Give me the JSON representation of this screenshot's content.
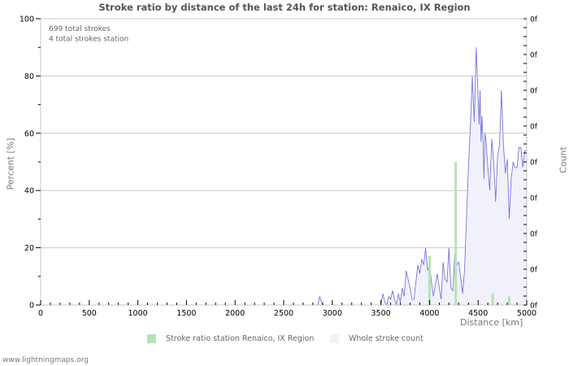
{
  "chart_data": {
    "type": "line",
    "title": "Stroke ratio by distance of the last 24h for station: Renaico, IX Region",
    "xlabel": "Distance   [km]",
    "ylabel": "Percent   [%]",
    "ylabel_right": "Count",
    "xlim": [
      0,
      5000
    ],
    "ylim": [
      0,
      100
    ],
    "x_ticks": [
      0,
      500,
      1000,
      1500,
      2000,
      2500,
      3000,
      3500,
      4000,
      4500,
      5000
    ],
    "y_ticks": [
      0,
      20,
      40,
      60,
      80,
      100
    ],
    "right_ticks": [
      "0f",
      "0f",
      "0f",
      "0f",
      "0f",
      "0f",
      "0f",
      "0f",
      "0f"
    ],
    "grid": true,
    "annotations": [
      "699 total strokes",
      "4 total strokes station"
    ],
    "legend_position": "bottom",
    "series": [
      {
        "name": "Stroke ratio station Renaico, IX Region",
        "type": "bar",
        "color": "#b6e2b6",
        "x": [
          4000,
          4270,
          4650,
          4820
        ],
        "values": [
          17,
          50,
          4,
          3
        ]
      },
      {
        "name": "Whole stroke count",
        "type": "area",
        "color": "#7777dd",
        "fill": "#f1f1fc",
        "x": [
          2850,
          2870,
          2890,
          2910,
          3500,
          3520,
          3540,
          3560,
          3580,
          3600,
          3620,
          3640,
          3660,
          3680,
          3700,
          3720,
          3740,
          3760,
          3780,
          3800,
          3820,
          3840,
          3860,
          3880,
          3900,
          3920,
          3940,
          3960,
          3980,
          4000,
          4020,
          4040,
          4060,
          4080,
          4100,
          4120,
          4140,
          4160,
          4180,
          4200,
          4220,
          4240,
          4260,
          4280,
          4300,
          4320,
          4340,
          4360,
          4380,
          4400,
          4420,
          4440,
          4460,
          4480,
          4500,
          4510,
          4520,
          4530,
          4540,
          4550,
          4560,
          4570,
          4580,
          4600,
          4620,
          4640,
          4660,
          4680,
          4700,
          4720,
          4740,
          4760,
          4780,
          4800,
          4820,
          4840,
          4860,
          4880,
          4900,
          4920,
          4940,
          4960,
          4980,
          5000
        ],
        "values": [
          0,
          3,
          1,
          0,
          0,
          4,
          1,
          0,
          3,
          2,
          5,
          2,
          0,
          4,
          1,
          6,
          3,
          12,
          9,
          6,
          2,
          2,
          8,
          14,
          11,
          16,
          14,
          20,
          12,
          14,
          8,
          3,
          7,
          11,
          6,
          2,
          15,
          9,
          8,
          20,
          6,
          5,
          18,
          14,
          15,
          10,
          4,
          12,
          30,
          48,
          62,
          80,
          64,
          90,
          73,
          63,
          75,
          57,
          66,
          58,
          44,
          60,
          58,
          48,
          40,
          58,
          50,
          36,
          52,
          56,
          75,
          56,
          46,
          51,
          30,
          44,
          50,
          48,
          48,
          55,
          55,
          48,
          54,
          54
        ]
      }
    ]
  },
  "header": {
    "title": "Stroke ratio by distance of the last 24h for station: Renaico, IX Region"
  },
  "info": {
    "total_strokes": "699 total strokes",
    "station_strokes": "4 total strokes station"
  },
  "axes": {
    "left_label": "Percent   [%]",
    "right_label": "Count",
    "x_label": "Distance   [km]"
  },
  "legend": {
    "station": "Stroke ratio station Renaico, IX Region",
    "whole": "Whole stroke count"
  },
  "footer": {
    "site": "www.lightningmaps.org"
  }
}
